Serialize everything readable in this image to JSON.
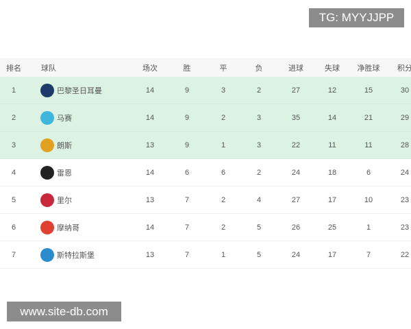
{
  "watermarks": {
    "top": "TG: MYYJJPP",
    "bottom": "www.site-db.com"
  },
  "headers": [
    "排名",
    "球队",
    "场次",
    "胜",
    "平",
    "负",
    "进球",
    "失球",
    "净胜球",
    "积分"
  ],
  "rows": [
    {
      "rank": "1",
      "team": "巴黎圣日耳曼",
      "logo": "psg-logo",
      "color": "#1d3a6b",
      "played": "14",
      "w": "9",
      "d": "3",
      "l": "2",
      "gf": "27",
      "ga": "12",
      "gd": "15",
      "pts": "30",
      "highlight": true
    },
    {
      "rank": "2",
      "team": "马赛",
      "logo": "marseille-logo",
      "color": "#3fb6de",
      "played": "14",
      "w": "9",
      "d": "2",
      "l": "3",
      "gf": "35",
      "ga": "14",
      "gd": "21",
      "pts": "29",
      "highlight": true
    },
    {
      "rank": "3",
      "team": "朗斯",
      "logo": "lens-logo",
      "color": "#e0a020",
      "played": "13",
      "w": "9",
      "d": "1",
      "l": "3",
      "gf": "22",
      "ga": "11",
      "gd": "11",
      "pts": "28",
      "highlight": true
    },
    {
      "rank": "4",
      "team": "雷恩",
      "logo": "rennes-logo",
      "color": "#222222",
      "played": "14",
      "w": "6",
      "d": "6",
      "l": "2",
      "gf": "24",
      "ga": "18",
      "gd": "6",
      "pts": "24",
      "highlight": false
    },
    {
      "rank": "5",
      "team": "里尔",
      "logo": "lille-logo",
      "color": "#c8283c",
      "played": "13",
      "w": "7",
      "d": "2",
      "l": "4",
      "gf": "27",
      "ga": "17",
      "gd": "10",
      "pts": "23",
      "highlight": false
    },
    {
      "rank": "6",
      "team": "摩纳哥",
      "logo": "monaco-logo",
      "color": "#e04030",
      "played": "14",
      "w": "7",
      "d": "2",
      "l": "5",
      "gf": "26",
      "ga": "25",
      "gd": "1",
      "pts": "23",
      "highlight": false
    },
    {
      "rank": "7",
      "team": "斯特拉斯堡",
      "logo": "strasbourg-logo",
      "color": "#2a8ccc",
      "played": "13",
      "w": "7",
      "d": "1",
      "l": "5",
      "gf": "24",
      "ga": "17",
      "gd": "7",
      "pts": "22",
      "highlight": false
    }
  ]
}
